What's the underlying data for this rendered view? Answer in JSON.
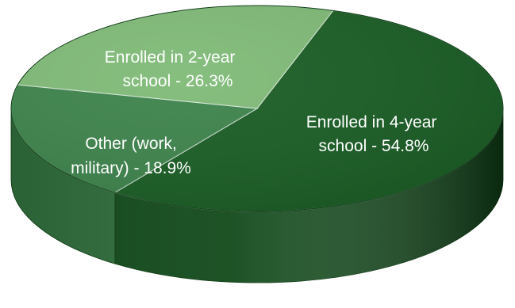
{
  "chart_data": {
    "type": "pie",
    "three_d": true,
    "title": "",
    "slices": [
      {
        "label": "Enrolled in 4-year school - 54.8%",
        "lines": [
          "Enrolled in 4-year",
          "school - 54.8%"
        ],
        "value": 54.8,
        "color": "#175B22",
        "side_color": "#124A1B"
      },
      {
        "label": "Other (work, military) - 18.9%",
        "lines": [
          "Other (work,",
          "military) - 18.9%"
        ],
        "value": 18.9,
        "color": "#3B824A",
        "side_color": "#2E6B3A"
      },
      {
        "label": "Enrolled in 2-year school - 26.3%",
        "lines": [
          "Enrolled in 2-year",
          "school - 26.3%"
        ],
        "value": 26.3,
        "color": "#7EBA76",
        "side_color": "#5E9A58"
      }
    ],
    "start_angle_deg": -72,
    "direction": "clockwise",
    "legend": "none",
    "data_labels": "inside"
  }
}
